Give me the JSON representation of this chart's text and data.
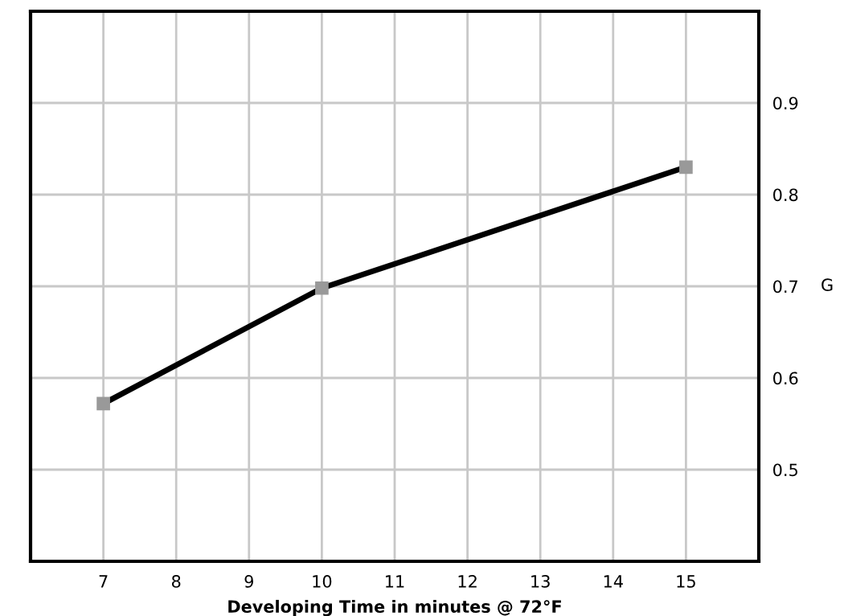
{
  "chart_data": {
    "type": "line",
    "xlabel": "Developing Time in minutes @ 72°F",
    "ylabel": "G",
    "x": [
      7,
      10,
      15
    ],
    "series": [
      {
        "color": "#000000",
        "values": [
          0.572,
          0.698,
          0.83
        ]
      }
    ],
    "xlim": [
      6,
      16
    ],
    "xticks": [
      {
        "value": 6,
        "label": null
      },
      7,
      8,
      9,
      10,
      11,
      12,
      13,
      14,
      15
    ],
    "ylim": [
      0.4,
      1.0
    ],
    "yticks": [
      {
        "value": 0.4,
        "label": null
      },
      0.5,
      0.6,
      0.7,
      0.8,
      0.9
    ],
    "grid": true,
    "marker": "square",
    "line_style": "solid",
    "legend": false
  }
}
